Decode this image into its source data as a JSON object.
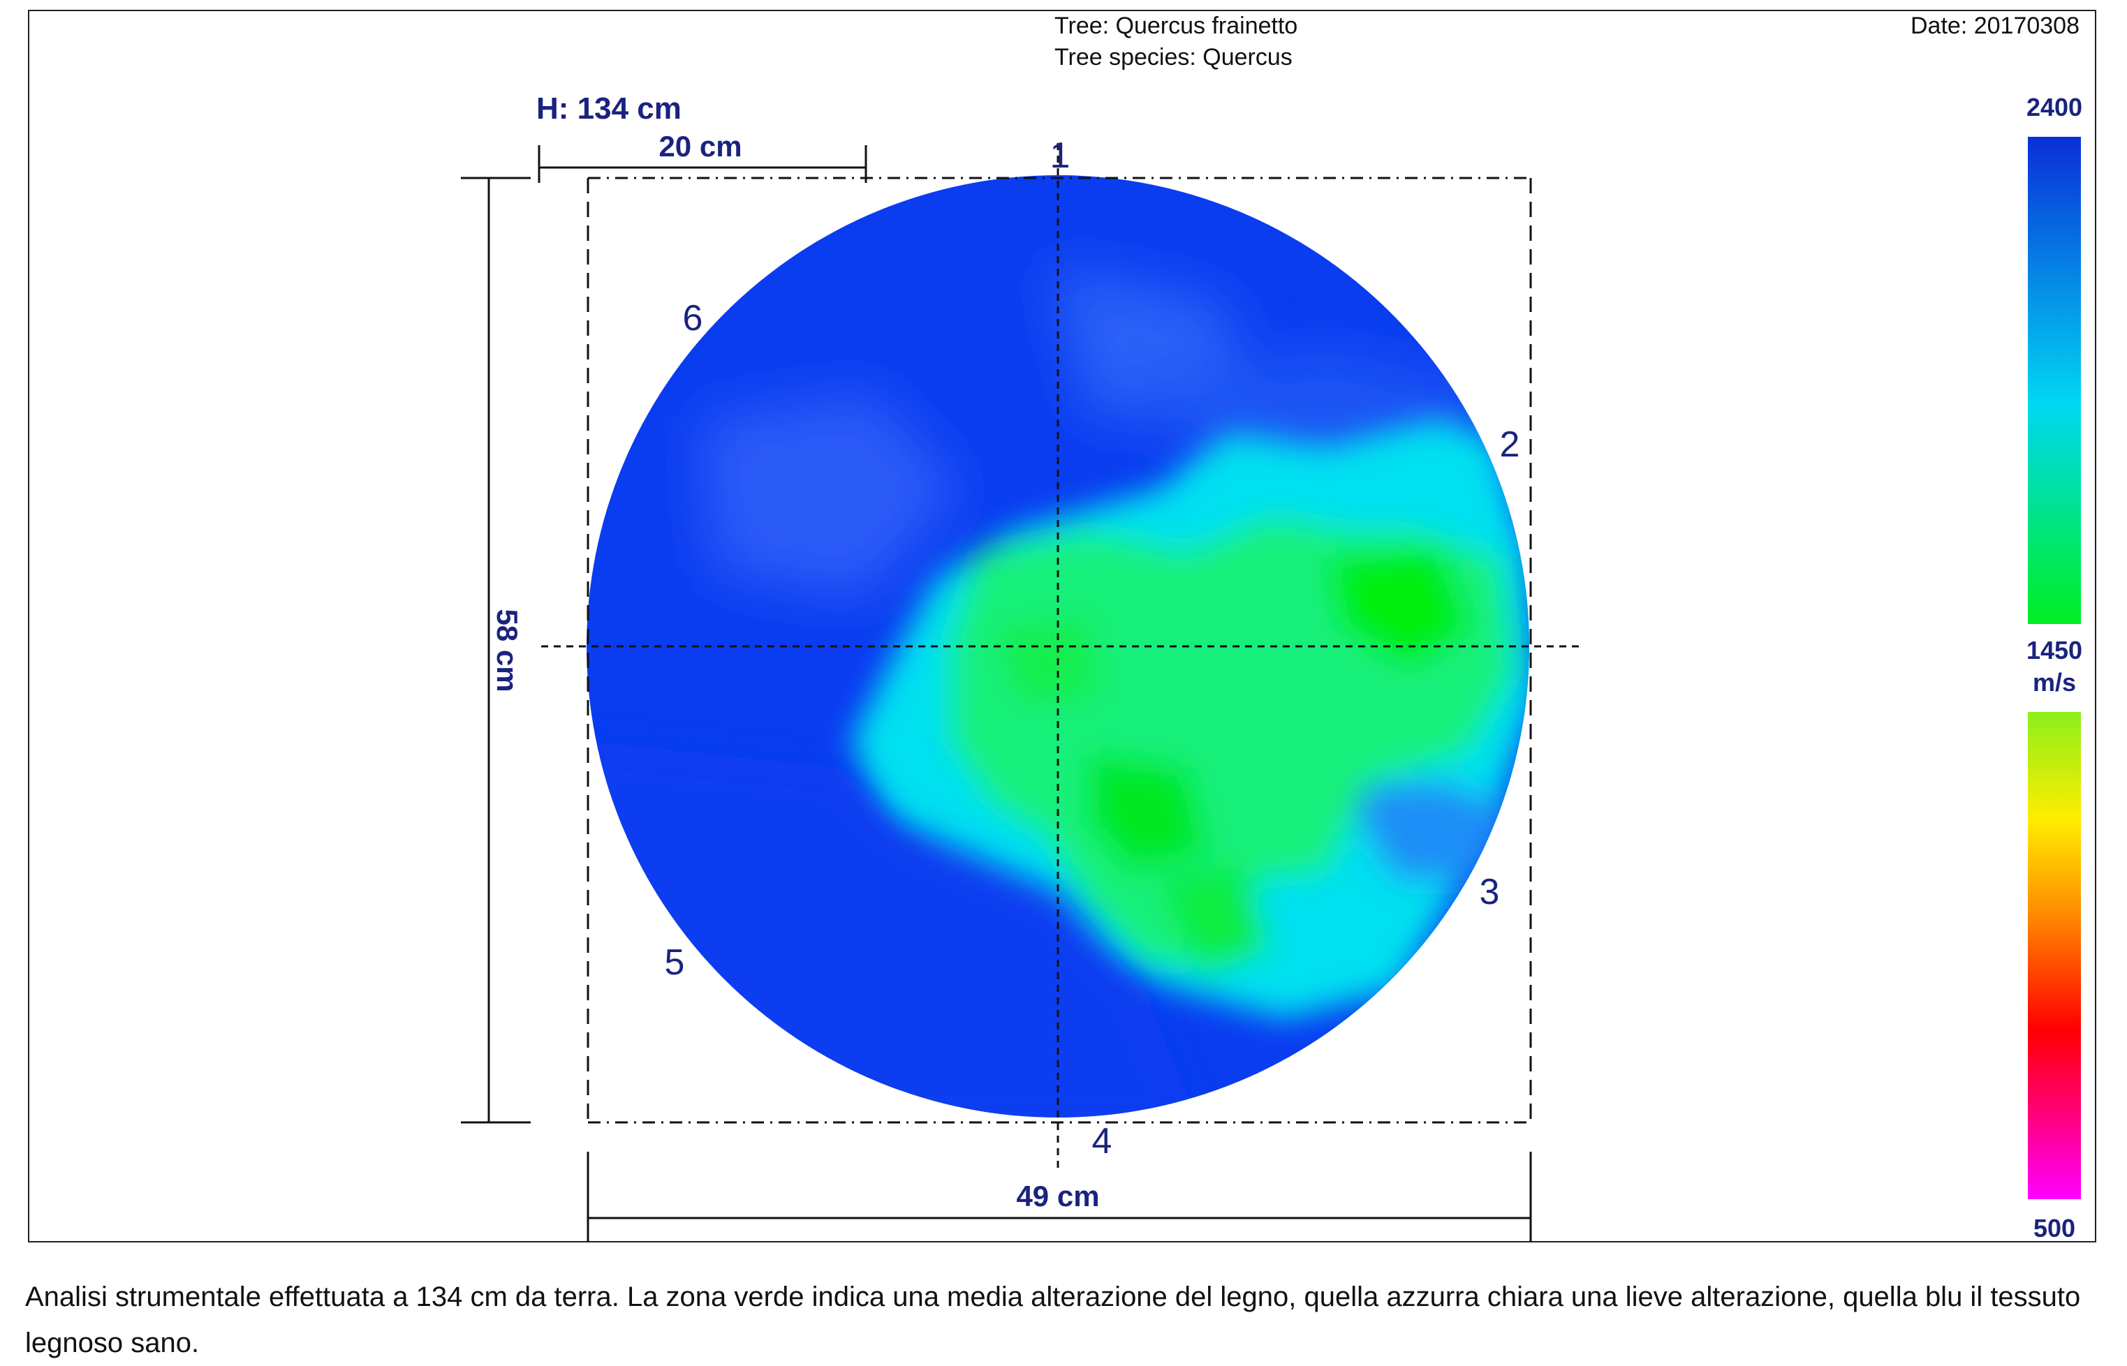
{
  "header": {
    "tree_label": "Tree: Quercus frainetto",
    "species_label": "Tree species: Quercus",
    "date_label": "Date: 20170308"
  },
  "tomogram": {
    "height_label": "H: 134 cm",
    "scale_label": "20 cm",
    "width_label": "49 cm",
    "depth_label": "58 cm",
    "sensors": [
      "1",
      "2",
      "3",
      "4",
      "5",
      "6"
    ]
  },
  "legend": {
    "max": "2400",
    "mid": "1450",
    "unit": "m/s",
    "min": "500"
  },
  "colors": {
    "sound": "#0a3cf0",
    "light_alteration": "#00e8f0",
    "medium_alteration": "#00e830",
    "text_blue": "#1a237e"
  },
  "caption": "Analisi strumentale effettuata a 134 cm da terra. La zona verde indica una media alterazione del legno, quella azzurra chiara una lieve alterazione, quella blu il tessuto legnoso sano."
}
